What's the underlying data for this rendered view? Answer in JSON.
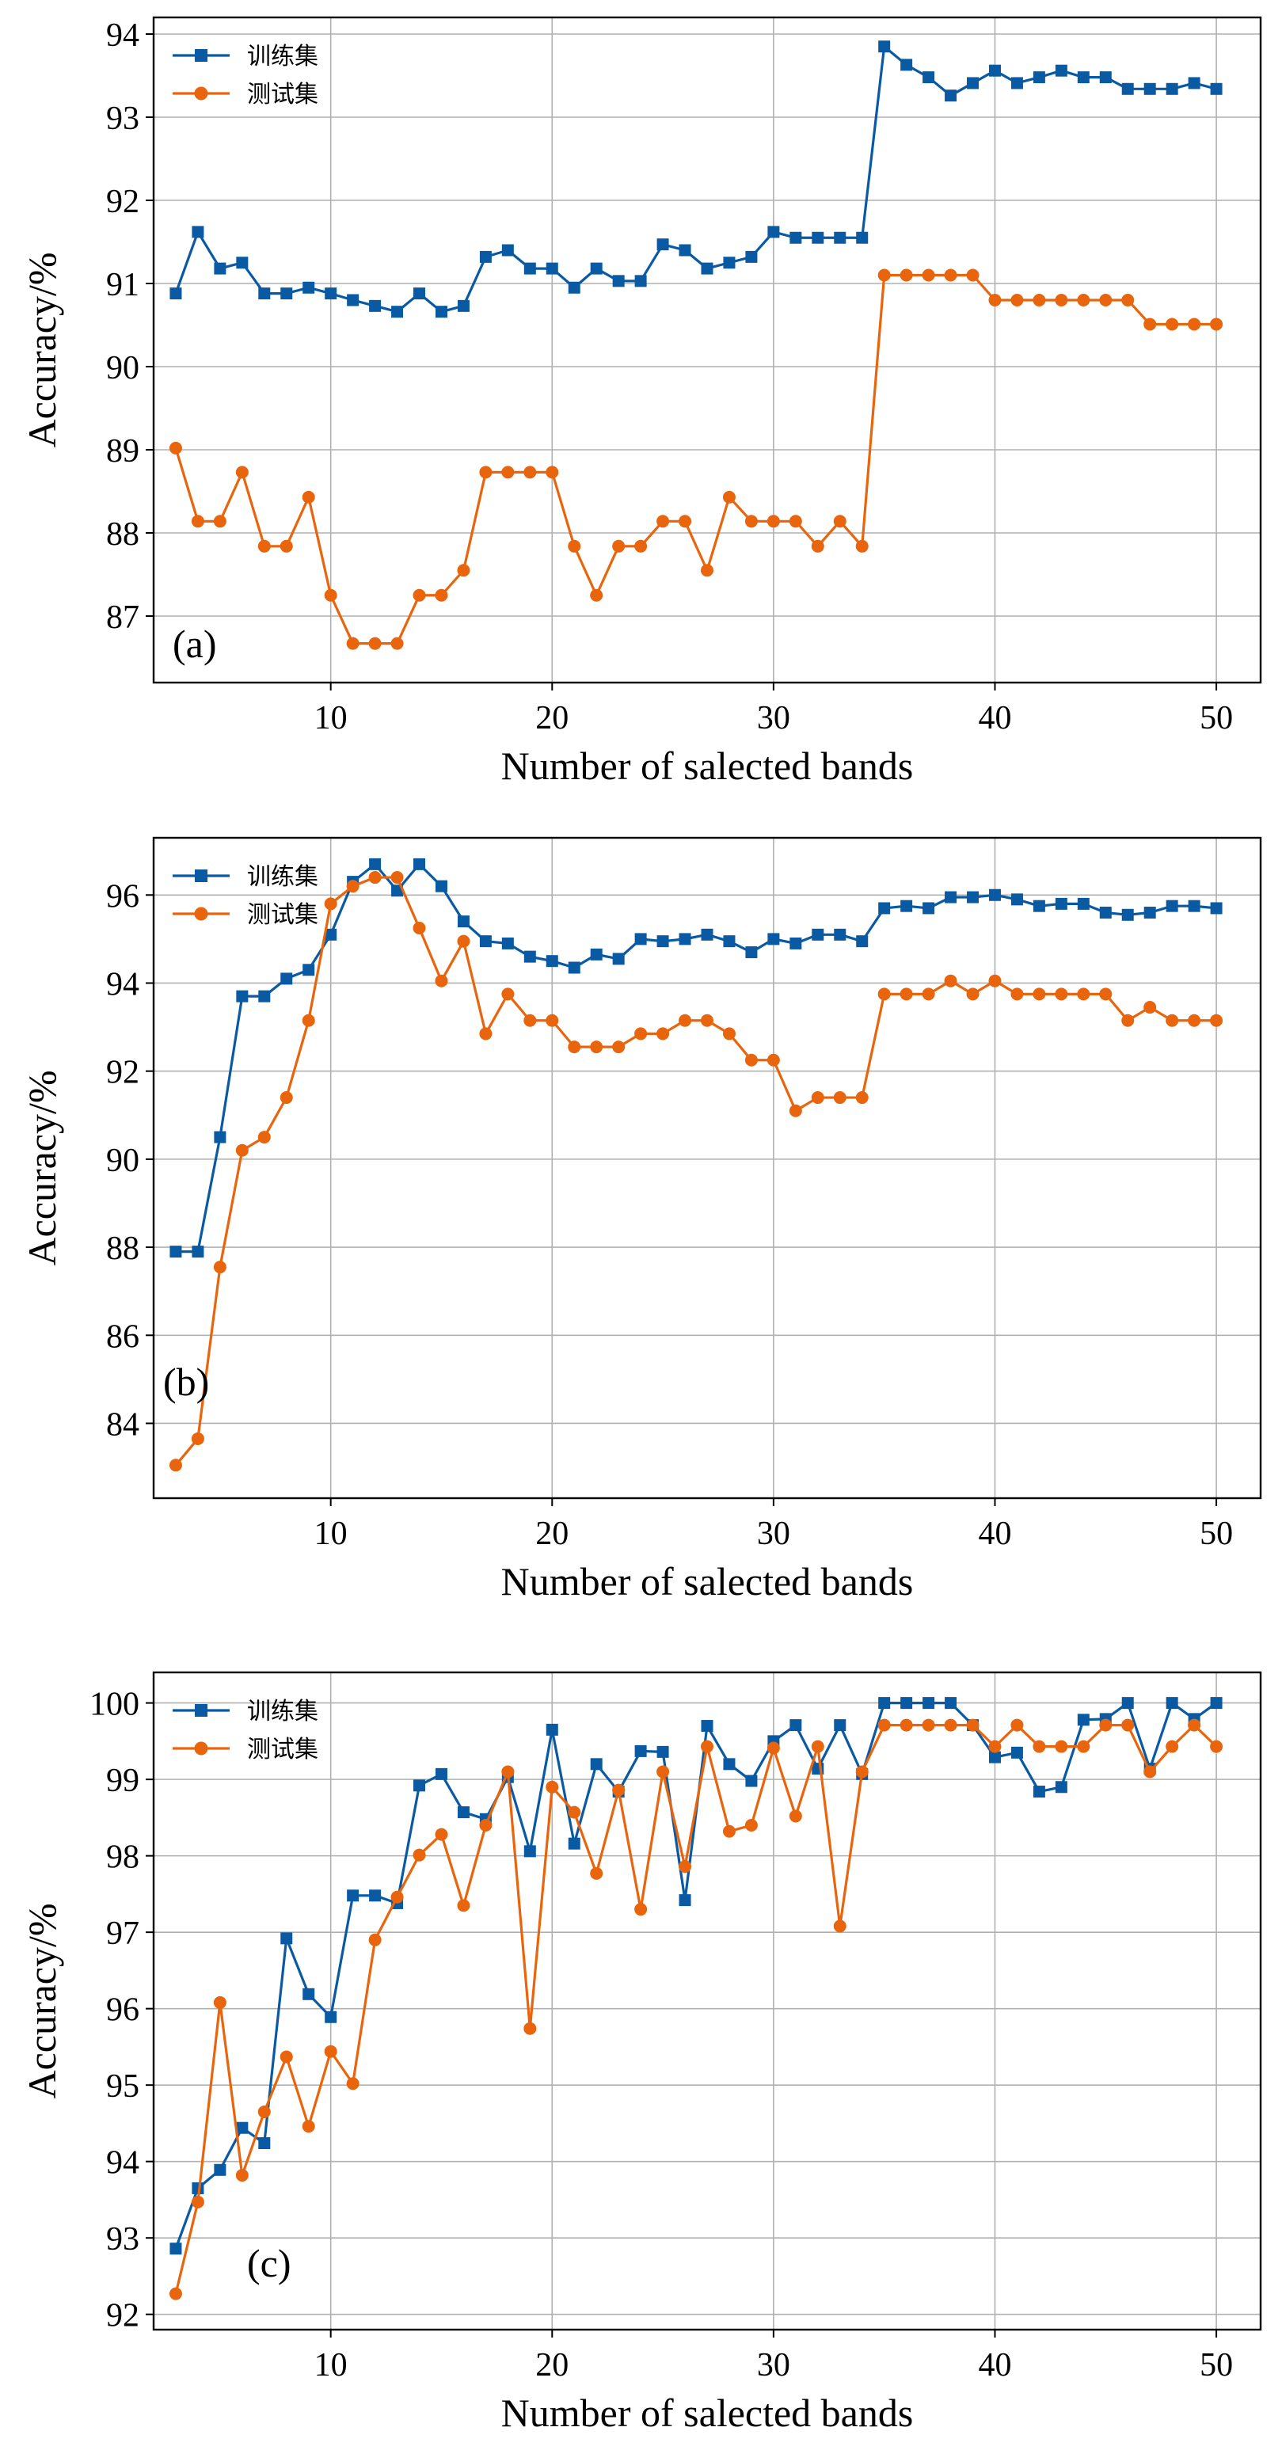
{
  "colors": {
    "train": "#0a5aa3",
    "test": "#e9650d"
  },
  "chart_data": [
    {
      "type": "line",
      "panel_label": "(a)",
      "xlabel": "Number of salected bands",
      "ylabel": "Accuracy/%",
      "xlim": [
        2,
        52
      ],
      "ylim": [
        86.2,
        94.2
      ],
      "xticks": [
        10,
        20,
        30,
        40,
        50
      ],
      "yticks": [
        87,
        88,
        89,
        90,
        91,
        92,
        93,
        94
      ],
      "grid": true,
      "legend_position": "top-left",
      "x": [
        3,
        4,
        5,
        6,
        7,
        8,
        9,
        10,
        11,
        12,
        13,
        14,
        15,
        16,
        17,
        18,
        19,
        20,
        21,
        22,
        23,
        24,
        25,
        26,
        27,
        28,
        29,
        30,
        31,
        32,
        33,
        34,
        35,
        36,
        37,
        38,
        39,
        40,
        41,
        42,
        43,
        44,
        45,
        46,
        47,
        48,
        49,
        50
      ],
      "series": [
        {
          "name": "训练集",
          "marker": "square",
          "values": [
            90.88,
            91.62,
            91.18,
            91.25,
            90.88,
            90.88,
            90.95,
            90.88,
            90.8,
            90.73,
            90.66,
            90.88,
            90.66,
            90.73,
            91.32,
            91.4,
            91.18,
            91.18,
            90.95,
            91.18,
            91.03,
            91.03,
            91.47,
            91.4,
            91.18,
            91.25,
            91.32,
            91.62,
            91.55,
            91.55,
            91.55,
            91.55,
            93.85,
            93.63,
            93.48,
            93.26,
            93.41,
            93.56,
            93.41,
            93.48,
            93.56,
            93.48,
            93.48,
            93.34,
            93.34,
            93.34,
            93.41,
            93.34
          ]
        },
        {
          "name": "测试集",
          "marker": "circle",
          "values": [
            89.02,
            88.14,
            88.14,
            88.73,
            87.84,
            87.84,
            88.43,
            87.25,
            86.67,
            86.67,
            86.67,
            87.25,
            87.25,
            87.55,
            88.73,
            88.73,
            88.73,
            88.73,
            87.84,
            87.25,
            87.84,
            87.84,
            88.14,
            88.14,
            87.55,
            88.43,
            88.14,
            88.14,
            88.14,
            87.84,
            88.14,
            87.84,
            91.1,
            91.1,
            91.1,
            91.1,
            91.1,
            90.8,
            90.8,
            90.8,
            90.8,
            90.8,
            90.8,
            90.8,
            90.51,
            90.51,
            90.51,
            90.51
          ]
        }
      ]
    },
    {
      "type": "line",
      "panel_label": "(b)",
      "xlabel": "Number of salected bands",
      "ylabel": "Accuracy/%",
      "xlim": [
        2,
        52
      ],
      "ylim": [
        82.3,
        97.3
      ],
      "xticks": [
        10,
        20,
        30,
        40,
        50
      ],
      "yticks": [
        84,
        86,
        88,
        90,
        92,
        94,
        96
      ],
      "grid": true,
      "legend_position": "top-left",
      "x": [
        3,
        4,
        5,
        6,
        7,
        8,
        9,
        10,
        11,
        12,
        13,
        14,
        15,
        16,
        17,
        18,
        19,
        20,
        21,
        22,
        23,
        24,
        25,
        26,
        27,
        28,
        29,
        30,
        31,
        32,
        33,
        34,
        35,
        36,
        37,
        38,
        39,
        40,
        41,
        42,
        43,
        44,
        45,
        46,
        47,
        48,
        49,
        50
      ],
      "series": [
        {
          "name": "训练集",
          "marker": "square",
          "values": [
            87.9,
            87.9,
            90.5,
            93.7,
            93.7,
            94.1,
            94.3,
            95.1,
            96.3,
            96.7,
            96.1,
            96.7,
            96.2,
            95.4,
            94.95,
            94.9,
            94.6,
            94.5,
            94.35,
            94.65,
            94.55,
            95.0,
            94.95,
            95.0,
            95.1,
            94.95,
            94.7,
            95.0,
            94.9,
            95.1,
            95.1,
            94.95,
            95.7,
            95.75,
            95.7,
            95.95,
            95.95,
            96.0,
            95.9,
            95.75,
            95.8,
            95.8,
            95.6,
            95.55,
            95.6,
            95.75,
            95.75,
            95.7
          ]
        },
        {
          "name": "测试集",
          "marker": "circle",
          "values": [
            83.05,
            83.65,
            87.55,
            90.2,
            90.5,
            91.4,
            93.15,
            95.8,
            96.2,
            96.4,
            96.4,
            95.25,
            94.05,
            94.95,
            92.85,
            93.75,
            93.15,
            93.15,
            92.55,
            92.55,
            92.55,
            92.85,
            92.85,
            93.15,
            93.15,
            92.85,
            92.25,
            92.25,
            91.1,
            91.4,
            91.4,
            91.4,
            93.75,
            93.75,
            93.75,
            94.05,
            93.75,
            94.05,
            93.75,
            93.75,
            93.75,
            93.75,
            93.75,
            93.15,
            93.45,
            93.15,
            93.15,
            93.15
          ]
        }
      ]
    },
    {
      "type": "line",
      "panel_label": "(c)",
      "xlabel": "Number of salected bands",
      "ylabel": "Accuracy/%",
      "xlim": [
        2,
        52
      ],
      "ylim": [
        91.8,
        100.4
      ],
      "xticks": [
        10,
        20,
        30,
        40,
        50
      ],
      "yticks": [
        92,
        93,
        94,
        95,
        96,
        97,
        98,
        99,
        100
      ],
      "grid": true,
      "legend_position": "top-left",
      "x": [
        3,
        4,
        5,
        6,
        7,
        8,
        9,
        10,
        11,
        12,
        13,
        14,
        15,
        16,
        17,
        18,
        19,
        20,
        21,
        22,
        23,
        24,
        25,
        26,
        27,
        28,
        29,
        30,
        31,
        32,
        33,
        34,
        35,
        36,
        37,
        38,
        39,
        40,
        41,
        42,
        43,
        44,
        45,
        46,
        47,
        48,
        49,
        50
      ],
      "series": [
        {
          "name": "训练集",
          "marker": "square",
          "values": [
            92.86,
            93.65,
            93.89,
            94.44,
            94.24,
            96.92,
            96.19,
            95.89,
            97.48,
            97.48,
            97.38,
            98.92,
            99.07,
            98.57,
            98.48,
            99.03,
            98.06,
            99.65,
            98.16,
            99.2,
            98.84,
            99.37,
            99.36,
            97.42,
            99.7,
            99.2,
            98.98,
            99.5,
            99.71,
            99.14,
            99.71,
            99.07,
            100.0,
            100.0,
            100.0,
            100.0,
            99.71,
            99.29,
            99.35,
            98.84,
            98.9,
            99.78,
            99.79,
            100.0,
            99.14,
            100.0,
            99.79,
            100.0
          ]
        },
        {
          "name": "测试集",
          "marker": "circle",
          "values": [
            92.27,
            93.47,
            96.08,
            93.82,
            94.65,
            95.37,
            94.46,
            95.44,
            95.02,
            96.9,
            97.46,
            98.01,
            98.28,
            97.35,
            98.4,
            99.1,
            95.74,
            98.9,
            98.57,
            97.77,
            98.86,
            97.3,
            99.1,
            97.86,
            99.43,
            98.32,
            98.4,
            99.41,
            98.52,
            99.43,
            97.08,
            99.1,
            99.71,
            99.71,
            99.71,
            99.71,
            99.71,
            99.43,
            99.71,
            99.43,
            99.43,
            99.43,
            99.71,
            99.71,
            99.1,
            99.43,
            99.71,
            99.43
          ]
        }
      ]
    }
  ]
}
